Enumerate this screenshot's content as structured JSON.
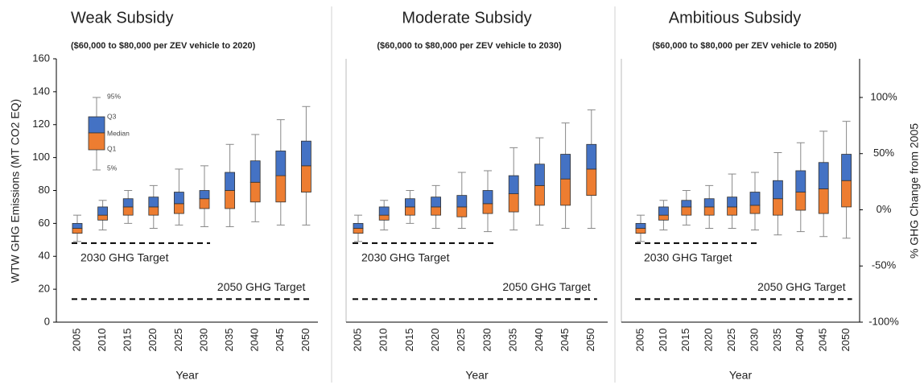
{
  "chart_data": [
    {
      "type": "box",
      "title": "Weak Subsidy",
      "subtitle": "($60,000 to $80,000 per ZEV vehicle to 2020)",
      "y_label": "WTW GHG Emissions (MT CO2 EQ)",
      "x_label": "Year",
      "categories": [
        "2005",
        "2010",
        "2015",
        "2020",
        "2025",
        "2030",
        "2035",
        "2040",
        "2045",
        "2050"
      ],
      "stats": [
        {
          "low": 49,
          "q1": 54,
          "median": 57,
          "q3": 60,
          "high": 65
        },
        {
          "low": 56,
          "q1": 62,
          "median": 65,
          "q3": 70,
          "high": 74
        },
        {
          "low": 60,
          "q1": 65,
          "median": 70,
          "q3": 75,
          "high": 80
        },
        {
          "low": 57,
          "q1": 65,
          "median": 70,
          "q3": 76,
          "high": 83
        },
        {
          "low": 59,
          "q1": 66,
          "median": 72,
          "q3": 79,
          "high": 93
        },
        {
          "low": 58,
          "q1": 69,
          "median": 75,
          "q3": 80,
          "high": 95
        },
        {
          "low": 58,
          "q1": 69,
          "median": 80,
          "q3": 91,
          "high": 108
        },
        {
          "low": 61,
          "q1": 73,
          "median": 85,
          "q3": 98,
          "high": 114
        },
        {
          "low": 59,
          "q1": 73,
          "median": 89,
          "q3": 104,
          "high": 123
        },
        {
          "low": 59,
          "q1": 79,
          "median": 95,
          "q3": 110,
          "high": 131
        }
      ],
      "lower_color": "#ed7d31",
      "upper_color": "#4472c4",
      "ylim": [
        0,
        160
      ],
      "yticks": [
        0,
        20,
        40,
        60,
        80,
        100,
        120,
        140,
        160
      ],
      "legend_labels": [
        "95%",
        "Q3",
        "Median",
        "Q1",
        "5%"
      ],
      "targets": [
        {
          "name": "2030 GHG Target",
          "value": 48
        },
        {
          "name": "2050 GHG Target",
          "value": 14
        }
      ]
    },
    {
      "type": "box",
      "title": "Moderate Subsidy",
      "subtitle": "($60,000 to $80,000 per ZEV vehicle to 2030)",
      "x_label": "Year",
      "categories": [
        "2005",
        "2010",
        "2015",
        "2020",
        "2025",
        "2030",
        "2035",
        "2040",
        "2045",
        "2050"
      ],
      "stats": [
        {
          "low": 49,
          "q1": 54,
          "median": 57,
          "q3": 60,
          "high": 65
        },
        {
          "low": 56,
          "q1": 62,
          "median": 65,
          "q3": 70,
          "high": 74
        },
        {
          "low": 60,
          "q1": 65,
          "median": 70,
          "q3": 75,
          "high": 80
        },
        {
          "low": 57,
          "q1": 65,
          "median": 70,
          "q3": 76,
          "high": 83
        },
        {
          "low": 57,
          "q1": 64,
          "median": 70,
          "q3": 77,
          "high": 91
        },
        {
          "low": 55,
          "q1": 66,
          "median": 72,
          "q3": 80,
          "high": 92
        },
        {
          "low": 56,
          "q1": 67,
          "median": 78,
          "q3": 89,
          "high": 106
        },
        {
          "low": 59,
          "q1": 71,
          "median": 83,
          "q3": 96,
          "high": 112
        },
        {
          "low": 57,
          "q1": 71,
          "median": 87,
          "q3": 102,
          "high": 121
        },
        {
          "low": 57,
          "q1": 77,
          "median": 93,
          "q3": 108,
          "high": 129
        }
      ],
      "lower_color": "#ed7d31",
      "upper_color": "#4472c4",
      "ylim": [
        0,
        160
      ],
      "targets": [
        {
          "name": "2030 GHG Target",
          "value": 48
        },
        {
          "name": "2050 GHG Target",
          "value": 14
        }
      ]
    },
    {
      "type": "box",
      "title": "Ambitious Subsidy",
      "subtitle": "($60,000 to $80,000 per ZEV vehicle to 2050)",
      "x_label": "Year",
      "y2_label": "% GHG Change from 2005",
      "categories": [
        "2005",
        "2010",
        "2015",
        "2020",
        "2025",
        "2030",
        "2035",
        "2040",
        "2045",
        "2050"
      ],
      "stats": [
        {
          "low": 49,
          "q1": 54,
          "median": 57,
          "q3": 60,
          "high": 65
        },
        {
          "low": 56,
          "q1": 62,
          "median": 65,
          "q3": 70,
          "high": 74
        },
        {
          "low": 59,
          "q1": 65,
          "median": 70,
          "q3": 74,
          "high": 80
        },
        {
          "low": 57,
          "q1": 65,
          "median": 70,
          "q3": 75,
          "high": 83
        },
        {
          "low": 57,
          "q1": 65,
          "median": 70,
          "q3": 76,
          "high": 90
        },
        {
          "low": 56,
          "q1": 66,
          "median": 71,
          "q3": 79,
          "high": 91
        },
        {
          "low": 53,
          "q1": 65,
          "median": 75,
          "q3": 86,
          "high": 103
        },
        {
          "low": 55,
          "q1": 68,
          "median": 79,
          "q3": 92,
          "high": 109
        },
        {
          "low": 52,
          "q1": 66,
          "median": 81,
          "q3": 97,
          "high": 116
        },
        {
          "low": 51,
          "q1": 70,
          "median": 86,
          "q3": 102,
          "high": 122
        }
      ],
      "lower_color": "#ed7d31",
      "upper_color": "#4472c4",
      "ylim": [
        0,
        160
      ],
      "y2lim": [
        -100,
        134.4
      ],
      "y2ticks": [
        {
          "value": -100,
          "label": "-100%"
        },
        {
          "value": -50,
          "label": "-50%"
        },
        {
          "value": 0,
          "label": "0%"
        },
        {
          "value": 50,
          "label": "50%"
        },
        {
          "value": 100,
          "label": "100%"
        }
      ],
      "targets": [
        {
          "name": "2030 GHG Target",
          "value": 48
        },
        {
          "name": "2050 GHG Target",
          "value": 14
        }
      ]
    }
  ]
}
